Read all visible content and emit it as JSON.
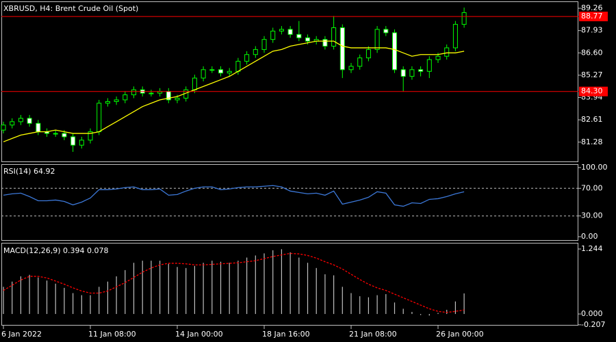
{
  "chart_data": [
    {
      "type": "candlestick",
      "title": "XBRUSD, H4:  Brent Crude Oil (Spot)",
      "categories": [
        "6 Jan 2022",
        null,
        null,
        null,
        null,
        null,
        null,
        null,
        null,
        null,
        "11 Jan 08:00",
        null,
        null,
        null,
        null,
        null,
        null,
        null,
        null,
        null,
        "14 Jan 00:00",
        null,
        null,
        null,
        null,
        null,
        null,
        null,
        null,
        null,
        "18 Jan 16:00",
        null,
        null,
        null,
        null,
        null,
        null,
        null,
        null,
        null,
        "21 Jan 08:00",
        null,
        null,
        null,
        null,
        null,
        null,
        null,
        null,
        null,
        "26 Jan 00:00",
        null,
        null,
        null
      ],
      "open": [
        82.0,
        82.3,
        82.5,
        82.7,
        82.4,
        81.9,
        81.8,
        81.8,
        81.6,
        81.1,
        81.4,
        81.9,
        83.6,
        83.7,
        83.8,
        84.1,
        84.4,
        84.2,
        84.2,
        84.3,
        83.8,
        83.9,
        84.4,
        85.1,
        85.6,
        85.6,
        85.4,
        85.5,
        86.1,
        86.5,
        86.8,
        87.4,
        87.9,
        88.0,
        87.7,
        87.5,
        87.3,
        87.4,
        87.0,
        88.1,
        85.6,
        85.8,
        86.3,
        86.8,
        88.0,
        87.8,
        85.6,
        85.2,
        85.6,
        85.5,
        86.2,
        86.4,
        86.9,
        88.3
      ],
      "high": [
        82.5,
        82.7,
        82.9,
        82.9,
        82.6,
        82.1,
        82.0,
        82.0,
        81.8,
        81.6,
        82.1,
        83.8,
        83.9,
        84.0,
        84.3,
        84.6,
        84.6,
        84.4,
        84.5,
        84.5,
        84.1,
        84.6,
        85.3,
        85.8,
        85.8,
        85.8,
        85.7,
        86.3,
        86.7,
        87.0,
        87.6,
        88.1,
        88.2,
        88.2,
        88.5,
        87.7,
        87.6,
        87.6,
        88.8,
        88.3,
        86.0,
        86.5,
        87.0,
        88.2,
        88.2,
        88.0,
        85.8,
        85.8,
        85.8,
        86.4,
        86.6,
        87.1,
        88.5,
        89.3
      ],
      "low": [
        81.8,
        82.1,
        82.3,
        82.2,
        81.7,
        81.6,
        81.6,
        81.4,
        80.7,
        80.9,
        81.2,
        81.7,
        83.4,
        83.5,
        83.6,
        83.9,
        84.0,
        84.0,
        84.0,
        83.6,
        83.6,
        83.7,
        84.2,
        84.9,
        85.4,
        85.2,
        85.2,
        85.3,
        85.9,
        86.3,
        86.6,
        87.2,
        87.7,
        87.5,
        87.3,
        87.1,
        87.1,
        86.8,
        86.8,
        85.1,
        85.4,
        85.6,
        86.1,
        86.6,
        87.6,
        85.4,
        84.3,
        85.0,
        85.2,
        85.1,
        86.0,
        86.2,
        86.7,
        88.1
      ],
      "close": [
        82.3,
        82.5,
        82.7,
        82.4,
        81.9,
        81.8,
        81.8,
        81.6,
        81.1,
        81.4,
        81.9,
        83.6,
        83.7,
        83.8,
        84.1,
        84.4,
        84.2,
        84.2,
        84.3,
        83.8,
        83.9,
        84.4,
        85.1,
        85.6,
        85.6,
        85.4,
        85.5,
        86.1,
        86.5,
        86.8,
        87.4,
        87.9,
        88.0,
        87.7,
        87.5,
        87.3,
        87.4,
        87.0,
        88.1,
        85.6,
        85.8,
        86.3,
        86.8,
        88.0,
        87.8,
        85.6,
        85.2,
        85.6,
        85.5,
        86.2,
        86.4,
        86.9,
        88.3,
        89.0
      ],
      "up_color": "#000000",
      "down_color": "#ffffff",
      "wick_color": "#00ff00",
      "ma": [
        81.3,
        81.5,
        81.7,
        81.8,
        81.9,
        81.9,
        82.0,
        81.9,
        81.8,
        81.8,
        81.8,
        81.9,
        82.2,
        82.5,
        82.8,
        83.1,
        83.4,
        83.6,
        83.8,
        83.9,
        84.0,
        84.2,
        84.4,
        84.6,
        84.8,
        85.0,
        85.2,
        85.5,
        85.8,
        86.1,
        86.4,
        86.7,
        86.8,
        87.0,
        87.1,
        87.2,
        87.3,
        87.3,
        87.3,
        87.0,
        86.9,
        86.9,
        86.9,
        86.9,
        86.9,
        86.8,
        86.6,
        86.4,
        86.5,
        86.5,
        86.5,
        86.6,
        86.6,
        86.7
      ],
      "ma_color": "#ffff00",
      "ylim": [
        80.09,
        89.67
      ],
      "yticks": [
        89.26,
        87.93,
        {
          "value": 86.6,
          "label": "86.60"
        },
        85.27,
        83.94,
        82.61,
        81.28
      ],
      "price_lines": [
        88.77,
        {
          "value": 84.3,
          "label": "84.30"
        }
      ],
      "price_line_color": "#ff0000"
    },
    {
      "type": "line",
      "title": "RSI(14) 64.92",
      "values": [
        60,
        62,
        63,
        58,
        52,
        52,
        53,
        51,
        46,
        50,
        56,
        68,
        68,
        69,
        71,
        72,
        68,
        68,
        69,
        60,
        61,
        66,
        70,
        72,
        72,
        68,
        69,
        71,
        72,
        72,
        73,
        74,
        72,
        66,
        64,
        62,
        63,
        60,
        66,
        47,
        50,
        53,
        57,
        65,
        63,
        46,
        44,
        49,
        48,
        54,
        55,
        58,
        62,
        64.92
      ],
      "color": "#3c78d8",
      "ylim": [
        -5.9,
        104.9
      ],
      "yticks": [
        {
          "value": 100,
          "label": "100.00"
        },
        {
          "value": 70,
          "label": "70.00"
        },
        {
          "value": 30,
          "label": "30.00"
        },
        {
          "value": 0,
          "label": "0.00"
        }
      ],
      "levels": [
        70,
        30
      ]
    },
    {
      "type": "bar",
      "title": "MACD(12,26,9) 0.394 0.078",
      "values": [
        0.52,
        0.62,
        0.72,
        0.75,
        0.7,
        0.64,
        0.58,
        0.5,
        0.4,
        0.36,
        0.36,
        0.52,
        0.62,
        0.72,
        0.84,
        0.98,
        1.02,
        1.02,
        1.02,
        0.96,
        0.9,
        0.88,
        0.92,
        0.98,
        1.02,
        1.0,
        0.98,
        1.02,
        1.08,
        1.12,
        1.16,
        1.22,
        1.24,
        1.18,
        1.08,
        0.98,
        0.88,
        0.76,
        0.74,
        0.52,
        0.4,
        0.34,
        0.32,
        0.36,
        0.38,
        0.22,
        0.1,
        0.04,
        -0.02,
        -0.03,
        0.02,
        0.08,
        0.24,
        0.394
      ],
      "color": "#c0c0c0",
      "signal": [
        0.45,
        0.55,
        0.65,
        0.72,
        0.72,
        0.69,
        0.63,
        0.57,
        0.5,
        0.44,
        0.4,
        0.4,
        0.44,
        0.52,
        0.6,
        0.7,
        0.8,
        0.88,
        0.94,
        0.97,
        0.97,
        0.96,
        0.94,
        0.94,
        0.95,
        0.96,
        0.97,
        0.98,
        1.0,
        1.02,
        1.06,
        1.1,
        1.13,
        1.16,
        1.15,
        1.12,
        1.07,
        1.0,
        0.94,
        0.86,
        0.76,
        0.66,
        0.57,
        0.5,
        0.45,
        0.38,
        0.31,
        0.24,
        0.17,
        0.1,
        0.05,
        0.03,
        0.05,
        0.078
      ],
      "signal_color": "#ff0000",
      "ylim": [
        -0.222,
        1.349
      ],
      "yticks": [
        1.244,
        {
          "value": 0,
          "label": "0.000"
        },
        -0.207
      ]
    }
  ]
}
